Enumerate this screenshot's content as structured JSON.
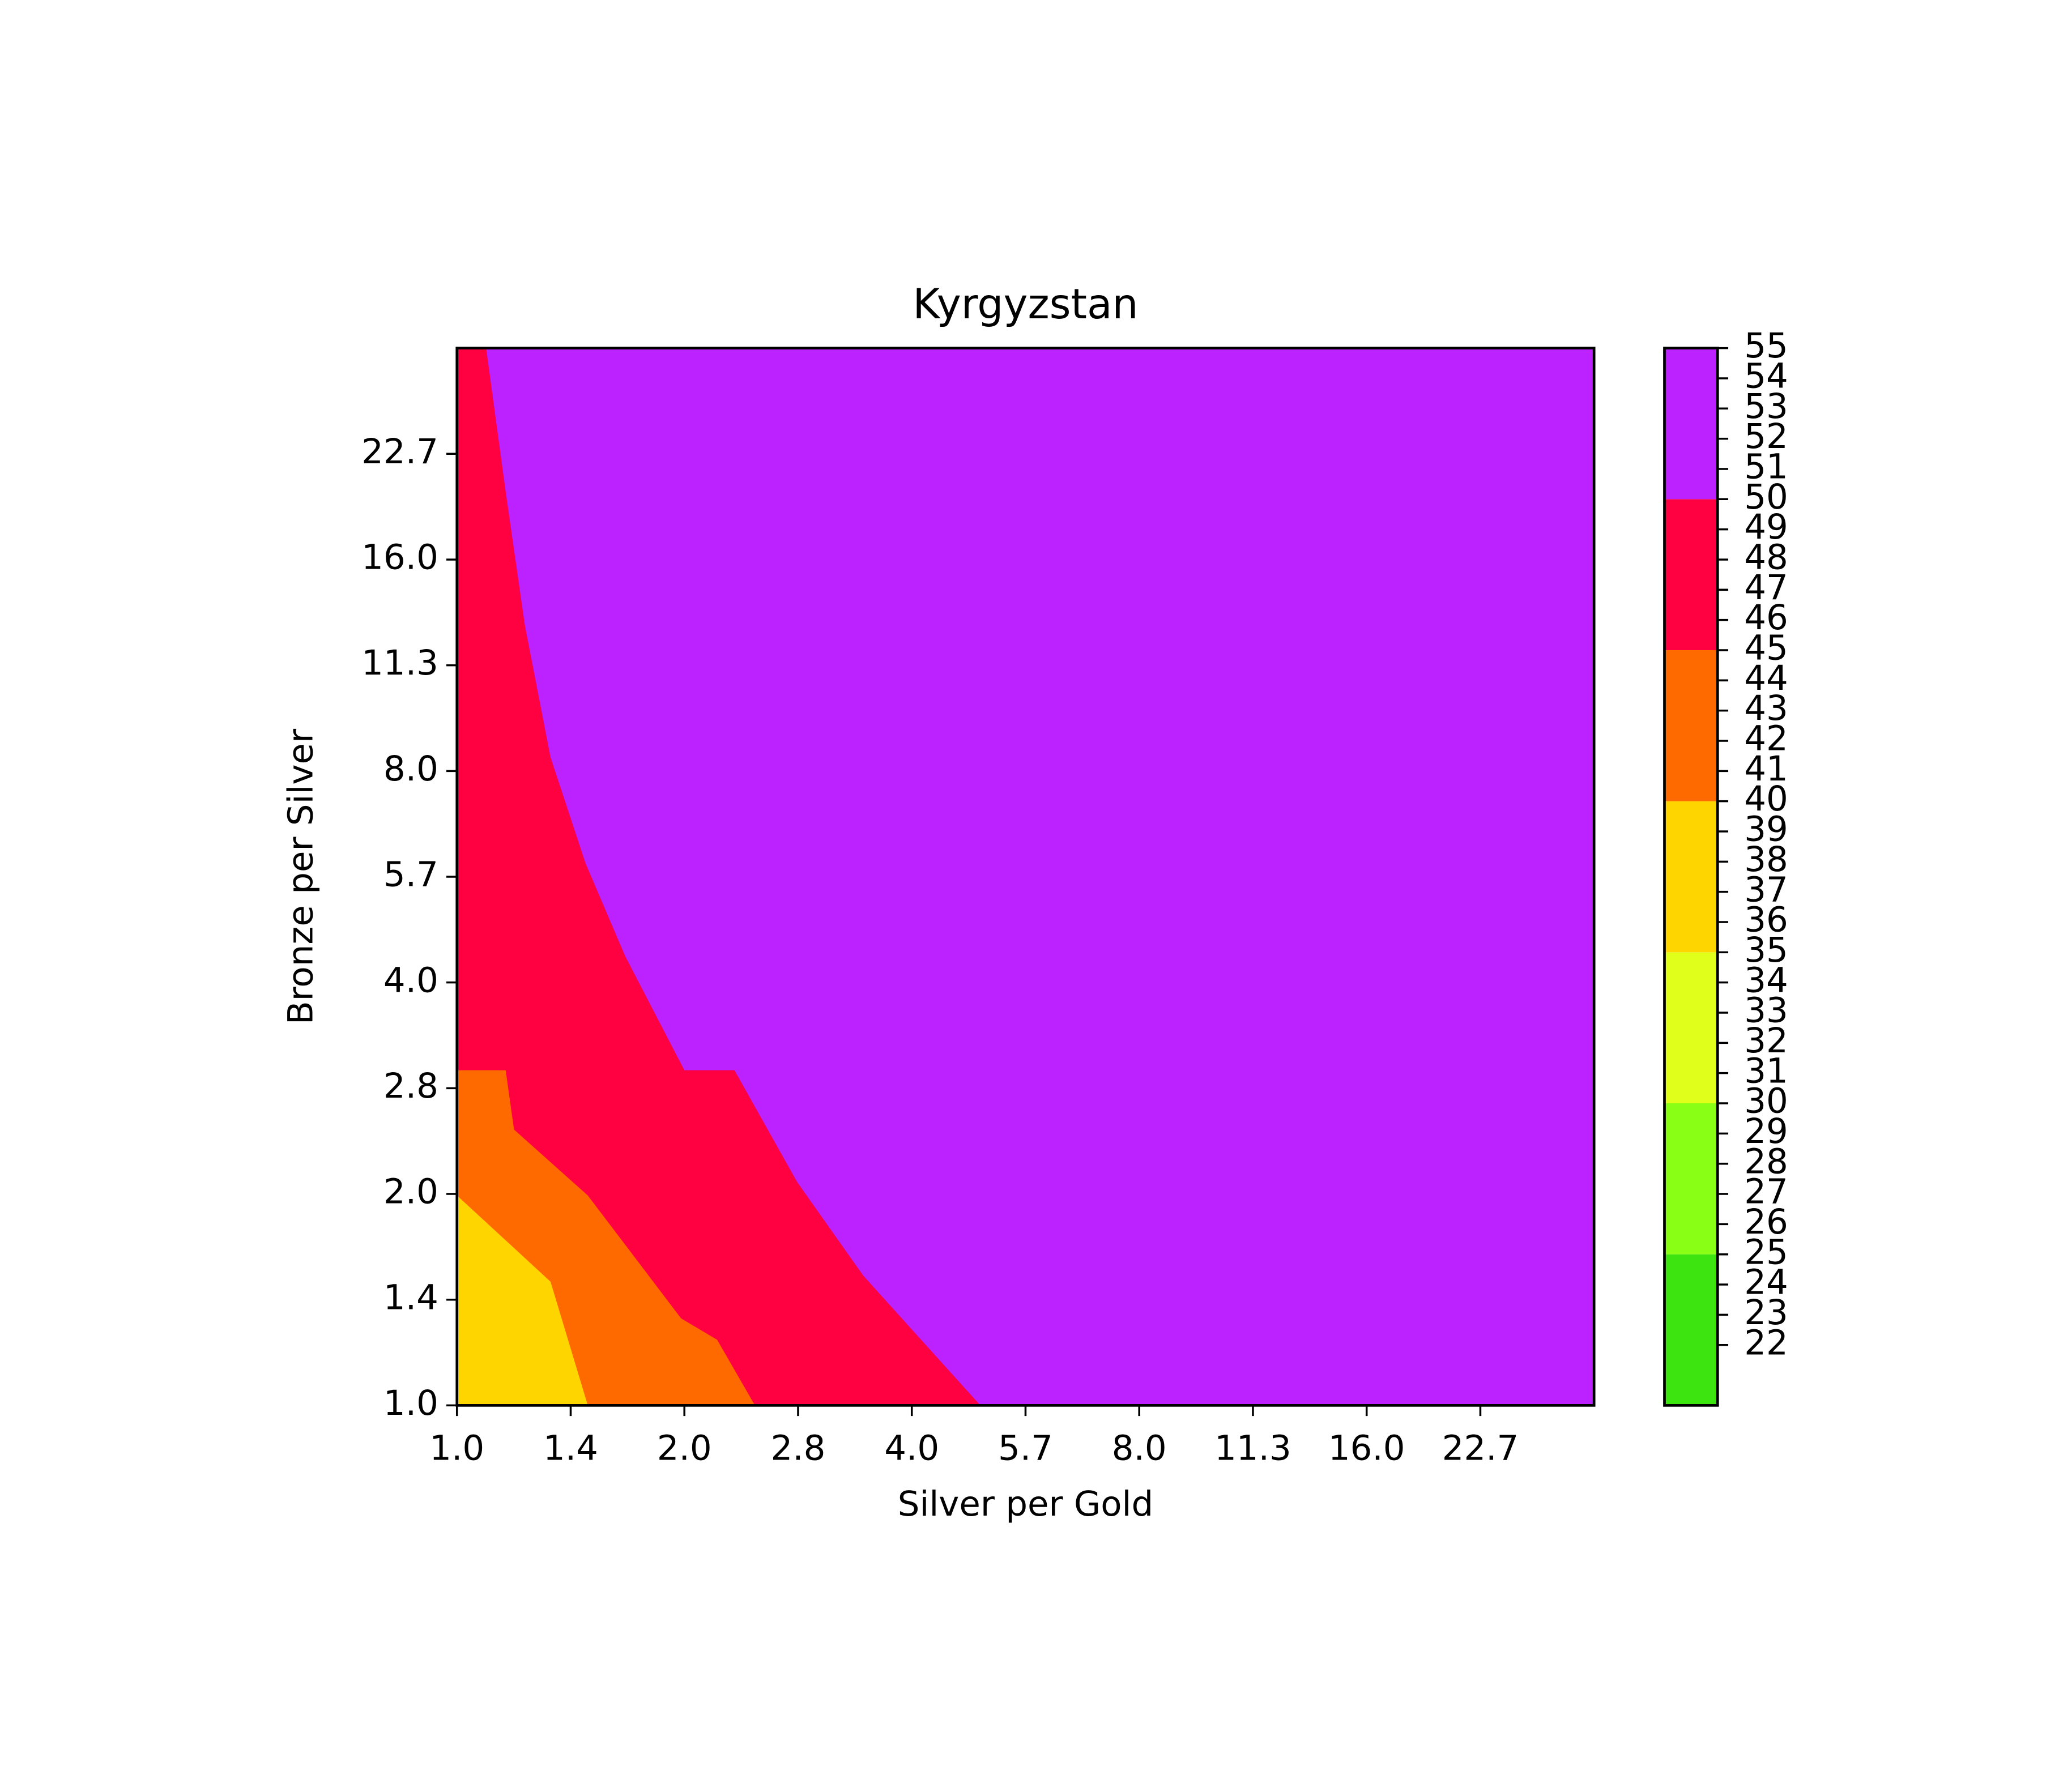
{
  "chart_data": {
    "type": "contourf",
    "title": "Kyrgyzstan",
    "xlabel": "Silver per Gold",
    "ylabel": "Bronze per Silver",
    "xscale": "log",
    "yscale": "log",
    "xlim": [
      1,
      32
    ],
    "ylim": [
      1,
      32
    ],
    "xticks": [
      {
        "value": 1,
        "label": "1.0"
      },
      {
        "value": 1.4142,
        "label": "1.4"
      },
      {
        "value": 2,
        "label": "2.0"
      },
      {
        "value": 2.8284,
        "label": "2.8"
      },
      {
        "value": 4,
        "label": "4.0"
      },
      {
        "value": 5.6569,
        "label": "5.7"
      },
      {
        "value": 8,
        "label": "8.0"
      },
      {
        "value": 11.3137,
        "label": "11.3"
      },
      {
        "value": 16,
        "label": "16.0"
      },
      {
        "value": 22.6274,
        "label": "22.7"
      }
    ],
    "yticks": [
      {
        "value": 1,
        "label": "1.0"
      },
      {
        "value": 1.4142,
        "label": "1.4"
      },
      {
        "value": 2,
        "label": "2.0"
      },
      {
        "value": 2.8284,
        "label": "2.8"
      },
      {
        "value": 4,
        "label": "4.0"
      },
      {
        "value": 5.6569,
        "label": "5.7"
      },
      {
        "value": 8,
        "label": "8.0"
      },
      {
        "value": 11.3137,
        "label": "11.3"
      },
      {
        "value": 16,
        "label": "16.0"
      },
      {
        "value": 22.6274,
        "label": "22.7"
      }
    ],
    "regions": [
      {
        "levels": [
          45,
          50
        ],
        "color": "#ff0040",
        "polygon": [
          [
            1,
            1
          ],
          [
            32,
            1
          ],
          [
            32,
            32
          ],
          [
            1,
            32
          ]
        ]
      },
      {
        "levels": [
          50,
          55
        ],
        "color": "#bb22ff",
        "polygon": [
          [
            1.093,
            32
          ],
          [
            32,
            32
          ],
          [
            32,
            1
          ],
          [
            4.93,
            1
          ],
          [
            3.45,
            1.53
          ],
          [
            2.82,
            2.08
          ],
          [
            2.33,
            3.0
          ],
          [
            2.0,
            3.0
          ],
          [
            1.67,
            4.36
          ],
          [
            1.48,
            5.91
          ],
          [
            1.33,
            8.37
          ],
          [
            1.23,
            12.9
          ],
          [
            1.16,
            20.0
          ],
          [
            1.093,
            32
          ]
        ]
      },
      {
        "levels": [
          40,
          45
        ],
        "color": "#ff6a00",
        "polygon": [
          [
            1,
            3.0
          ],
          [
            1.16,
            3.0
          ],
          [
            1.19,
            2.47
          ],
          [
            1.49,
            1.99
          ],
          [
            1.98,
            1.33
          ],
          [
            2.21,
            1.24
          ],
          [
            2.48,
            1
          ],
          [
            1,
            1
          ]
        ]
      },
      {
        "levels": [
          35,
          40
        ],
        "color": "#ffd500",
        "polygon": [
          [
            1,
            1.99
          ],
          [
            1.33,
            1.5
          ],
          [
            1.49,
            1
          ],
          [
            1,
            1
          ]
        ]
      }
    ],
    "colorbar": {
      "levels": [
        20,
        25,
        30,
        35,
        40,
        45,
        50,
        55
      ],
      "colors": [
        "#3de40f",
        "#88ff14",
        "#e0ff1a",
        "#ffd500",
        "#ff6a00",
        "#ff0040",
        "#bb22ff"
      ],
      "lim": [
        20,
        55
      ],
      "ticks": [
        22,
        23,
        24,
        25,
        26,
        27,
        28,
        29,
        30,
        31,
        32,
        33,
        34,
        35,
        36,
        37,
        38,
        39,
        40,
        41,
        42,
        43,
        44,
        45,
        46,
        47,
        48,
        49,
        50,
        51,
        52,
        53,
        54,
        55
      ]
    }
  }
}
